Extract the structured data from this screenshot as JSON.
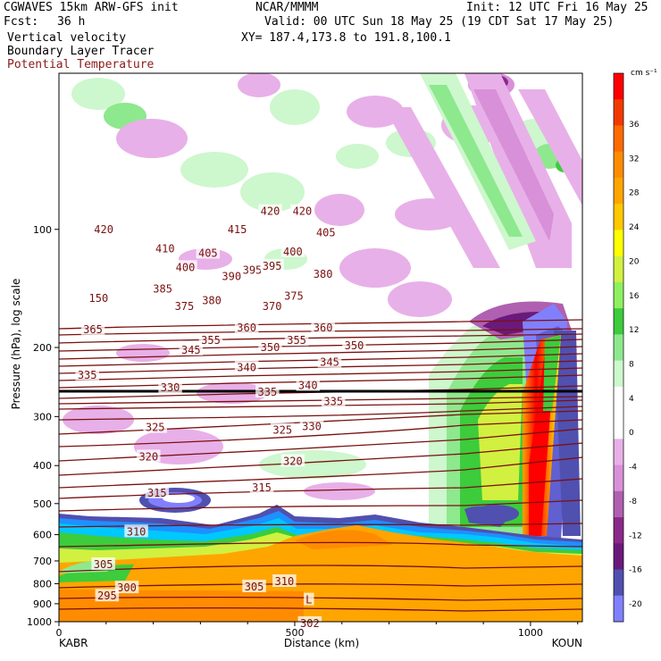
{
  "header": {
    "model": "CGWAVES 15km ARW-GFS init",
    "fcst_label": "Fcst:",
    "fcst_value": "36 h",
    "field1": "Vertical velocity",
    "field2": "Boundary Layer Tracer",
    "field3": "Potential Temperature",
    "org": "NCAR/MMMM",
    "valid": "Valid: 00 UTC Sun 18 May 25 (19 CDT Sat 17 May 25)",
    "xy": "XY= 187.4,173.8 to 191.8,100.1",
    "init": "Init: 12 UTC Fri 16 May 25",
    "field3_color": "#8b1a1a"
  },
  "chart_data": {
    "type": "cross-section",
    "ylabel": "Pressure (hPa), log scale",
    "xlabel": "Distance (km)",
    "y_scale": "log",
    "ylim": [
      1000,
      40
    ],
    "y_ticks": [
      100,
      200,
      300,
      400,
      500,
      600,
      700,
      800,
      900,
      1000
    ],
    "x_ticks": [
      0,
      500,
      1000
    ],
    "xlim": [
      0,
      1110
    ],
    "x_endpoints": [
      "KABR",
      "KOUN"
    ],
    "colorbar": {
      "unit": "cm s⁻¹",
      "labels": [
        36,
        32,
        28,
        24,
        20,
        16,
        12,
        8,
        4,
        0,
        -4,
        -8,
        -12,
        -16,
        -20
      ],
      "colors": [
        "#ff0000",
        "#f23a00",
        "#ff6a00",
        "#ff8c00",
        "#ffa500",
        "#ffc800",
        "#ffff00",
        "#d2f040",
        "#8ef060",
        "#3ccc3c",
        "#8ee88e",
        "#cdf7cd",
        "#ffffff",
        "#ffffff",
        "#e8b0e8",
        "#d890d8",
        "#b060b0",
        "#8a2a8a",
        "#6a1a7a",
        "#5050b0",
        "#8080ff"
      ]
    },
    "theta_labels": [
      {
        "v": "420",
        "x": 95,
        "p": 100
      },
      {
        "v": "410",
        "x": 225,
        "p": 112
      },
      {
        "v": "415",
        "x": 378,
        "p": 100
      },
      {
        "v": "420",
        "x": 448,
        "p": 90
      },
      {
        "v": "420",
        "x": 516,
        "p": 90
      },
      {
        "v": "400",
        "x": 268,
        "p": 125
      },
      {
        "v": "405",
        "x": 316,
        "p": 115
      },
      {
        "v": "390",
        "x": 366,
        "p": 132
      },
      {
        "v": "395",
        "x": 410,
        "p": 127
      },
      {
        "v": "395",
        "x": 452,
        "p": 124
      },
      {
        "v": "400",
        "x": 496,
        "p": 114
      },
      {
        "v": "405",
        "x": 566,
        "p": 102
      },
      {
        "v": "380",
        "x": 560,
        "p": 130
      },
      {
        "v": "385",
        "x": 220,
        "p": 142
      },
      {
        "v": "375",
        "x": 266,
        "p": 157
      },
      {
        "v": "380",
        "x": 324,
        "p": 152
      },
      {
        "v": "370",
        "x": 452,
        "p": 157
      },
      {
        "v": "375",
        "x": 498,
        "p": 148
      },
      {
        "v": "365",
        "x": 72,
        "p": 180
      },
      {
        "v": "345",
        "x": 280,
        "p": 203
      },
      {
        "v": "355",
        "x": 322,
        "p": 192
      },
      {
        "v": "360",
        "x": 398,
        "p": 178
      },
      {
        "v": "350",
        "x": 448,
        "p": 200
      },
      {
        "v": "355",
        "x": 504,
        "p": 192
      },
      {
        "v": "360",
        "x": 560,
        "p": 178
      },
      {
        "v": "350",
        "x": 626,
        "p": 198
      },
      {
        "v": "335",
        "x": 60,
        "p": 235
      },
      {
        "v": "330",
        "x": 236,
        "p": 253
      },
      {
        "v": "340",
        "x": 398,
        "p": 225
      },
      {
        "v": "335",
        "x": 442,
        "p": 260
      },
      {
        "v": "340",
        "x": 528,
        "p": 250
      },
      {
        "v": "345",
        "x": 574,
        "p": 218
      },
      {
        "v": "335",
        "x": 582,
        "p": 275
      },
      {
        "v": "325",
        "x": 204,
        "p": 320
      },
      {
        "v": "325",
        "x": 474,
        "p": 325
      },
      {
        "v": "330",
        "x": 536,
        "p": 318
      },
      {
        "v": "320",
        "x": 190,
        "p": 380
      },
      {
        "v": "320",
        "x": 496,
        "p": 390
      },
      {
        "v": "315",
        "x": 208,
        "p": 470
      },
      {
        "v": "315",
        "x": 430,
        "p": 455
      },
      {
        "v": "310",
        "x": 164,
        "p": 590
      },
      {
        "v": "305",
        "x": 94,
        "p": 715
      },
      {
        "v": "300",
        "x": 144,
        "p": 820
      },
      {
        "v": "295",
        "x": 102,
        "p": 860
      },
      {
        "v": "305",
        "x": 414,
        "p": 815
      },
      {
        "v": "310",
        "x": 478,
        "p": 790
      },
      {
        "v": "302",
        "x": 532,
        "p": 1010
      },
      {
        "v": "L",
        "x": 530,
        "p": 880
      },
      {
        "v": "150",
        "x": 84,
        "p": 150
      }
    ]
  }
}
